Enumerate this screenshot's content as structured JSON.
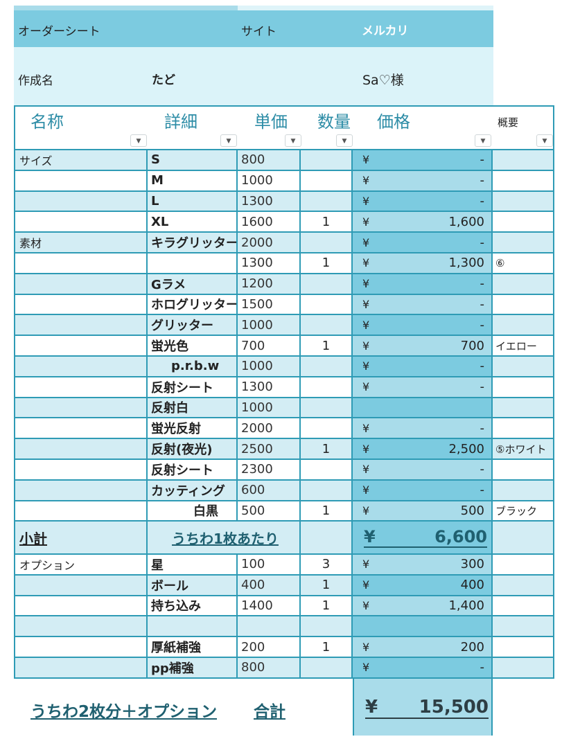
{
  "header": {
    "sheet_label": "オーダーシート",
    "site_label": "サイト",
    "site_value": "メルカリ",
    "creator_label": "作成名",
    "creator_value": "たど",
    "customer": "Sa♡様"
  },
  "columns": [
    "名称",
    "詳細",
    "単価",
    "数量",
    "価格",
    "概要"
  ],
  "colors": {
    "border": "#2e9bb5",
    "header_bar": "#7ccbe0",
    "header_light": "#dbf3f9",
    "row_light": "#d3edf4",
    "price_dark": "#7ccbe0",
    "price_light": "#a9dcea",
    "header_text": "#2c8ca6",
    "total_text": "#1f6070"
  },
  "rows": [
    {
      "name": "サイズ",
      "detail": "S",
      "unit": "800",
      "qty": "",
      "yen": "¥",
      "price": "-",
      "note": ""
    },
    {
      "name": "",
      "detail": "M",
      "unit": "1000",
      "qty": "",
      "yen": "¥",
      "price": "-",
      "note": ""
    },
    {
      "name": "",
      "detail": "L",
      "unit": "1300",
      "qty": "",
      "yen": "¥",
      "price": "-",
      "note": ""
    },
    {
      "name": "",
      "detail": "XL",
      "unit": "1600",
      "qty": "1",
      "yen": "¥",
      "price": "1,600",
      "note": ""
    },
    {
      "name": "素材",
      "detail": "キラグリッター",
      "unit": "2000",
      "qty": "",
      "yen": "¥",
      "price": "-",
      "note": ""
    },
    {
      "name": "",
      "detail": "",
      "unit": "1300",
      "qty": "1",
      "yen": "¥",
      "price": "1,300",
      "note": "⑥"
    },
    {
      "name": "",
      "detail": "Gラメ",
      "unit": "1200",
      "qty": "",
      "yen": "¥",
      "price": "-",
      "note": ""
    },
    {
      "name": "",
      "detail": "ホログリッター",
      "unit": "1500",
      "qty": "",
      "yen": "¥",
      "price": "-",
      "note": ""
    },
    {
      "name": "",
      "detail": "グリッター",
      "unit": "1000",
      "qty": "",
      "yen": "¥",
      "price": "-",
      "note": ""
    },
    {
      "name": "",
      "detail": "蛍光色",
      "unit": "700",
      "qty": "1",
      "yen": "¥",
      "price": "700",
      "note": "イエロー"
    },
    {
      "name": "",
      "detail": "p.r.b.w",
      "unit": "1000",
      "qty": "",
      "yen": "¥",
      "price": "-",
      "note": "",
      "indent": true
    },
    {
      "name": "",
      "detail": "反射シート",
      "unit": "1300",
      "qty": "",
      "yen": "¥",
      "price": "-",
      "note": ""
    },
    {
      "name": "",
      "detail": "反射白",
      "unit": "1000",
      "qty": "",
      "yen": "",
      "price": "",
      "note": ""
    },
    {
      "name": "",
      "detail": "蛍光反射",
      "unit": "2000",
      "qty": "",
      "yen": "¥",
      "price": "-",
      "note": ""
    },
    {
      "name": "",
      "detail": "反射(夜光)",
      "unit": "2500",
      "qty": "1",
      "yen": "¥",
      "price": "2,500",
      "note": "⑤ホワイト"
    },
    {
      "name": "",
      "detail": "反射シート",
      "unit": "2300",
      "qty": "",
      "yen": "¥",
      "price": "-",
      "note": ""
    },
    {
      "name": "",
      "detail": "カッティング",
      "unit": "600",
      "qty": "",
      "yen": "¥",
      "price": "-",
      "note": ""
    },
    {
      "name": "",
      "detail": "白黒",
      "unit": "500",
      "qty": "1",
      "yen": "¥",
      "price": "500",
      "note": "ブラック",
      "right": true
    }
  ],
  "subtotal": {
    "label": "小計",
    "per_label": "うちわ1枚あたり",
    "yen": "¥",
    "value": "6,600"
  },
  "options": [
    {
      "name": "オプション",
      "detail": "星",
      "unit": "100",
      "qty": "3",
      "yen": "¥",
      "price": "300",
      "note": ""
    },
    {
      "name": "",
      "detail": "ボール",
      "unit": "400",
      "qty": "1",
      "yen": "¥",
      "price": "400",
      "note": ""
    },
    {
      "name": "",
      "detail": "持ち込み",
      "unit": "1400",
      "qty": "1",
      "yen": "¥",
      "price": "1,400",
      "note": ""
    },
    {
      "name": "",
      "detail": "",
      "unit": "",
      "qty": "",
      "yen": "",
      "price": "",
      "note": ""
    },
    {
      "name": "",
      "detail": "厚紙補強",
      "unit": "200",
      "qty": "1",
      "yen": "¥",
      "price": "200",
      "note": ""
    },
    {
      "name": "",
      "detail": "pp補強",
      "unit": "800",
      "qty": "",
      "yen": "¥",
      "price": "-",
      "note": ""
    }
  ],
  "total": {
    "desc": "うちわ2枚分＋オプション",
    "label": "合計",
    "yen": "¥",
    "value": "15,500"
  }
}
